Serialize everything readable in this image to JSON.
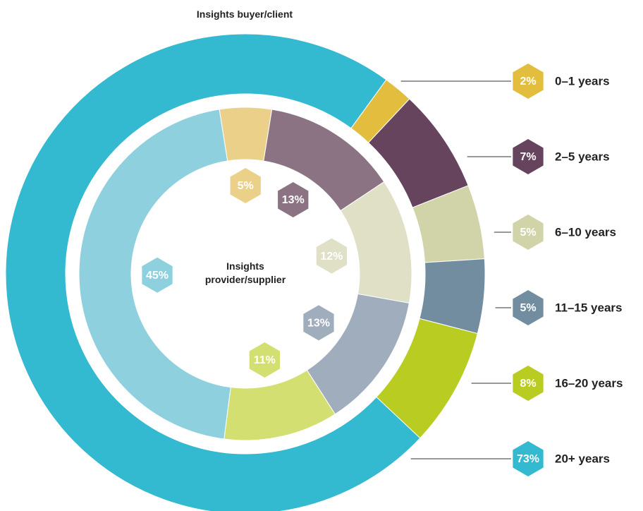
{
  "chart_data": {
    "type": "donut",
    "categories": [
      "0–1 years",
      "2–5 years",
      "6–10 years",
      "11–15 years",
      "16–20 years",
      "20+ years"
    ],
    "series": [
      {
        "name": "Insights buyer/client",
        "colors": [
          "#e2bd3e",
          "#66445e",
          "#d1d3a8",
          "#728ca0",
          "#b8cc21",
          "#33b9d0"
        ],
        "values": [
          2,
          7,
          5,
          5,
          8,
          73
        ],
        "value_labels": [
          "2%",
          "7%",
          "5%",
          "5%",
          "8%",
          "73%"
        ]
      },
      {
        "name": "Insights provider/supplier",
        "colors": [
          "#ebd08a",
          "#8b7383",
          "#e0e0c6",
          "#a0adbc",
          "#d3df70",
          "#8fd0df"
        ],
        "values": [
          5,
          13,
          12,
          13,
          11,
          45
        ],
        "value_labels": [
          "5%",
          "13%",
          "12%",
          "13%",
          "11%",
          "45%"
        ]
      }
    ]
  }
}
